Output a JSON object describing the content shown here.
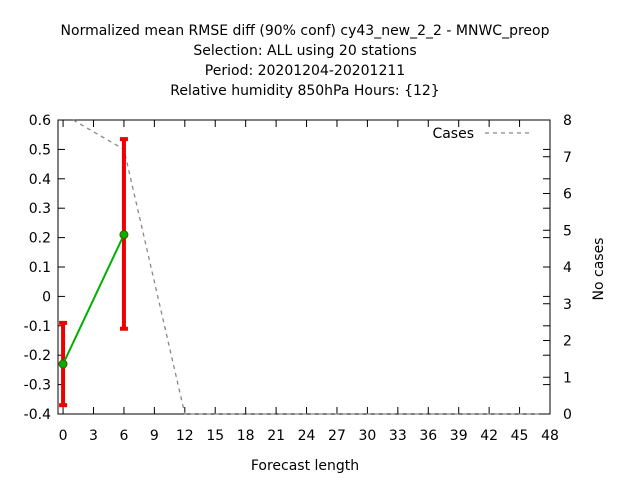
{
  "chart_data": {
    "type": "line",
    "title_lines": [
      "Normalized mean RMSE diff (90% conf) cy43_new_2_2 - MNWC_preop",
      "Selection: ALL using    20 stations",
      "Period: 20201204-20201211",
      "Relative humidity 850hPa   Hours: {12}"
    ],
    "xlabel": "Forecast length",
    "ylabel": "",
    "y2label": "No cases",
    "xlim": [
      -0.5,
      48
    ],
    "xticks": [
      0,
      3,
      6,
      9,
      12,
      15,
      18,
      21,
      24,
      27,
      30,
      33,
      36,
      39,
      42,
      45,
      48
    ],
    "ylim": [
      -0.4,
      0.6
    ],
    "yticks": [
      "0.6",
      "0.5",
      "0.4",
      "0.3",
      "0.2",
      "0.1",
      "0",
      "-0.1",
      "-0.2",
      "-0.3",
      "-0.4"
    ],
    "y2lim": [
      0,
      8
    ],
    "y2ticks": [
      "8",
      "7",
      "6",
      "5",
      "4",
      "3",
      "2",
      "1",
      "0"
    ],
    "legend": {
      "label": "Cases",
      "placement": "top-right"
    },
    "series": [
      {
        "kind": "mean_diff",
        "color": "#00b000",
        "x": [
          0,
          6
        ],
        "y": [
          -0.23,
          0.21
        ],
        "err_low": [
          -0.37,
          -0.11
        ],
        "err_high": [
          -0.09,
          0.535
        ],
        "err_color": "#ee0000"
      },
      {
        "name": "Cases",
        "kind": "cases",
        "axis": "y2",
        "color": "#888888",
        "x": [
          1,
          6,
          12,
          13,
          47
        ],
        "y": [
          8,
          7.2,
          0,
          0,
          0
        ]
      }
    ]
  }
}
